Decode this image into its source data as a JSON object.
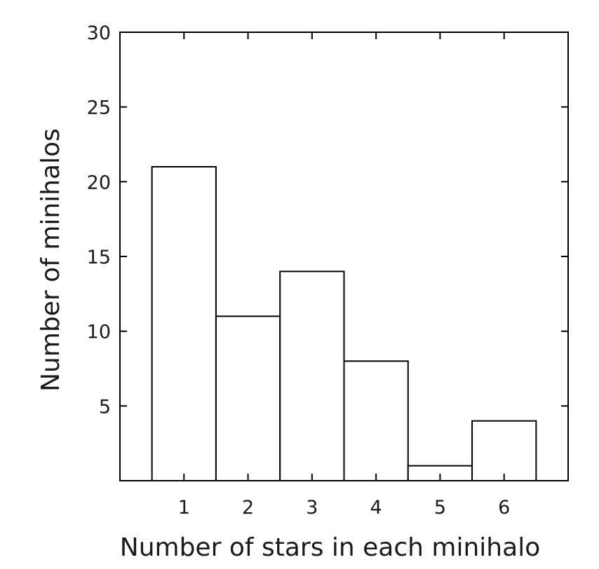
{
  "chart_data": {
    "type": "bar",
    "title": "",
    "xlabel": "Number of stars in each minihalo",
    "ylabel": "Number of minihalos",
    "categories": [
      "1",
      "2",
      "3",
      "4",
      "5",
      "6"
    ],
    "values": [
      21,
      11,
      14,
      8,
      1,
      4
    ],
    "ylim": [
      0,
      30
    ],
    "xlim": [
      0,
      7
    ],
    "yticks": [
      5,
      10,
      15,
      20,
      25,
      30
    ],
    "xticks": [
      1,
      2,
      3,
      4,
      5,
      6
    ],
    "grid": false,
    "legend": "none",
    "bar_fill": "#ffffff",
    "bar_edge": "#000000"
  }
}
